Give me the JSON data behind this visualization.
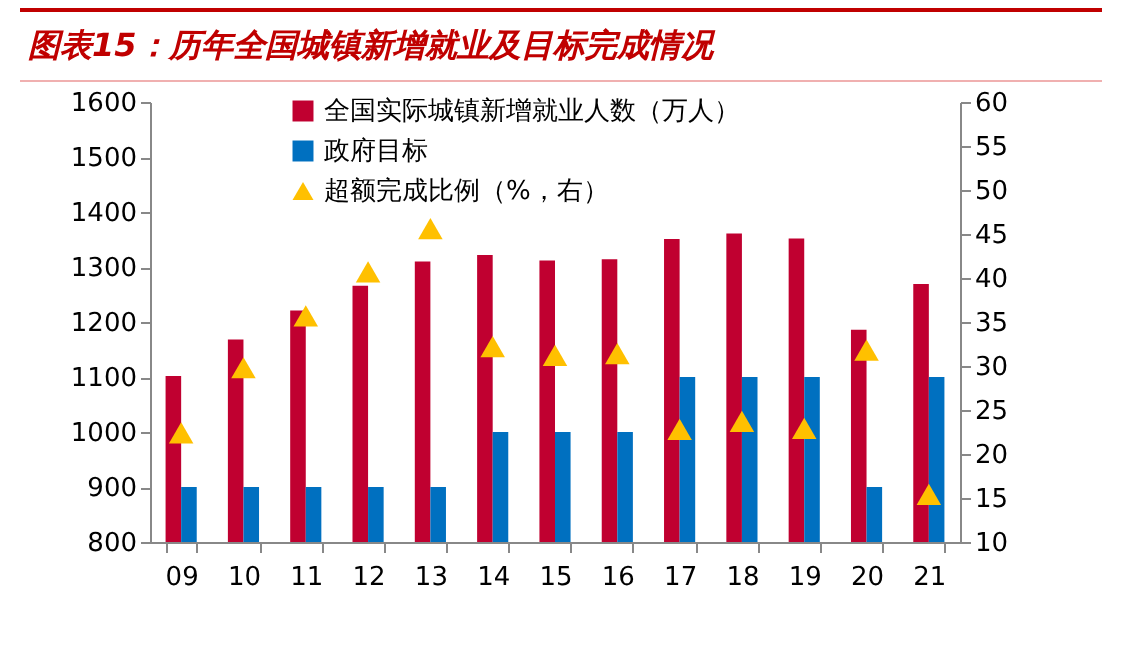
{
  "chart_data": {
    "type": "bar",
    "title": "图表15：历年全国城镇新增就业及目标完成情况",
    "categories": [
      "09",
      "10",
      "11",
      "12",
      "13",
      "14",
      "15",
      "16",
      "17",
      "18",
      "19",
      "20",
      "21"
    ],
    "series": [
      {
        "name": "全国实际城镇新增就业人数（万人）",
        "color": "#c00030",
        "values": [
          1102,
          1168,
          1221,
          1266,
          1310,
          1322,
          1312,
          1314,
          1351,
          1361,
          1352,
          1186,
          1269
        ]
      },
      {
        "name": "政府目标",
        "color": "#0070c0",
        "values": [
          900,
          900,
          900,
          900,
          900,
          1000,
          1000,
          1000,
          1100,
          1100,
          1100,
          900,
          1100
        ]
      },
      {
        "name": "超额完成比例（%，右）",
        "color": "#ffc000",
        "type": "scatter",
        "axis": "y2",
        "marker": "triangle",
        "values": [
          22.4,
          29.8,
          35.7,
          40.7,
          45.6,
          32.2,
          31.2,
          31.4,
          22.8,
          23.7,
          22.9,
          31.8,
          15.4
        ]
      }
    ],
    "ylim": [
      800,
      1600
    ],
    "yticks": [
      800,
      900,
      1000,
      1100,
      1200,
      1300,
      1400,
      1500,
      1600
    ],
    "y2lim": [
      10,
      60
    ],
    "y2ticks": [
      10,
      15,
      20,
      25,
      30,
      35,
      40,
      45,
      50,
      55,
      60
    ],
    "legend": "top",
    "grid": false
  }
}
